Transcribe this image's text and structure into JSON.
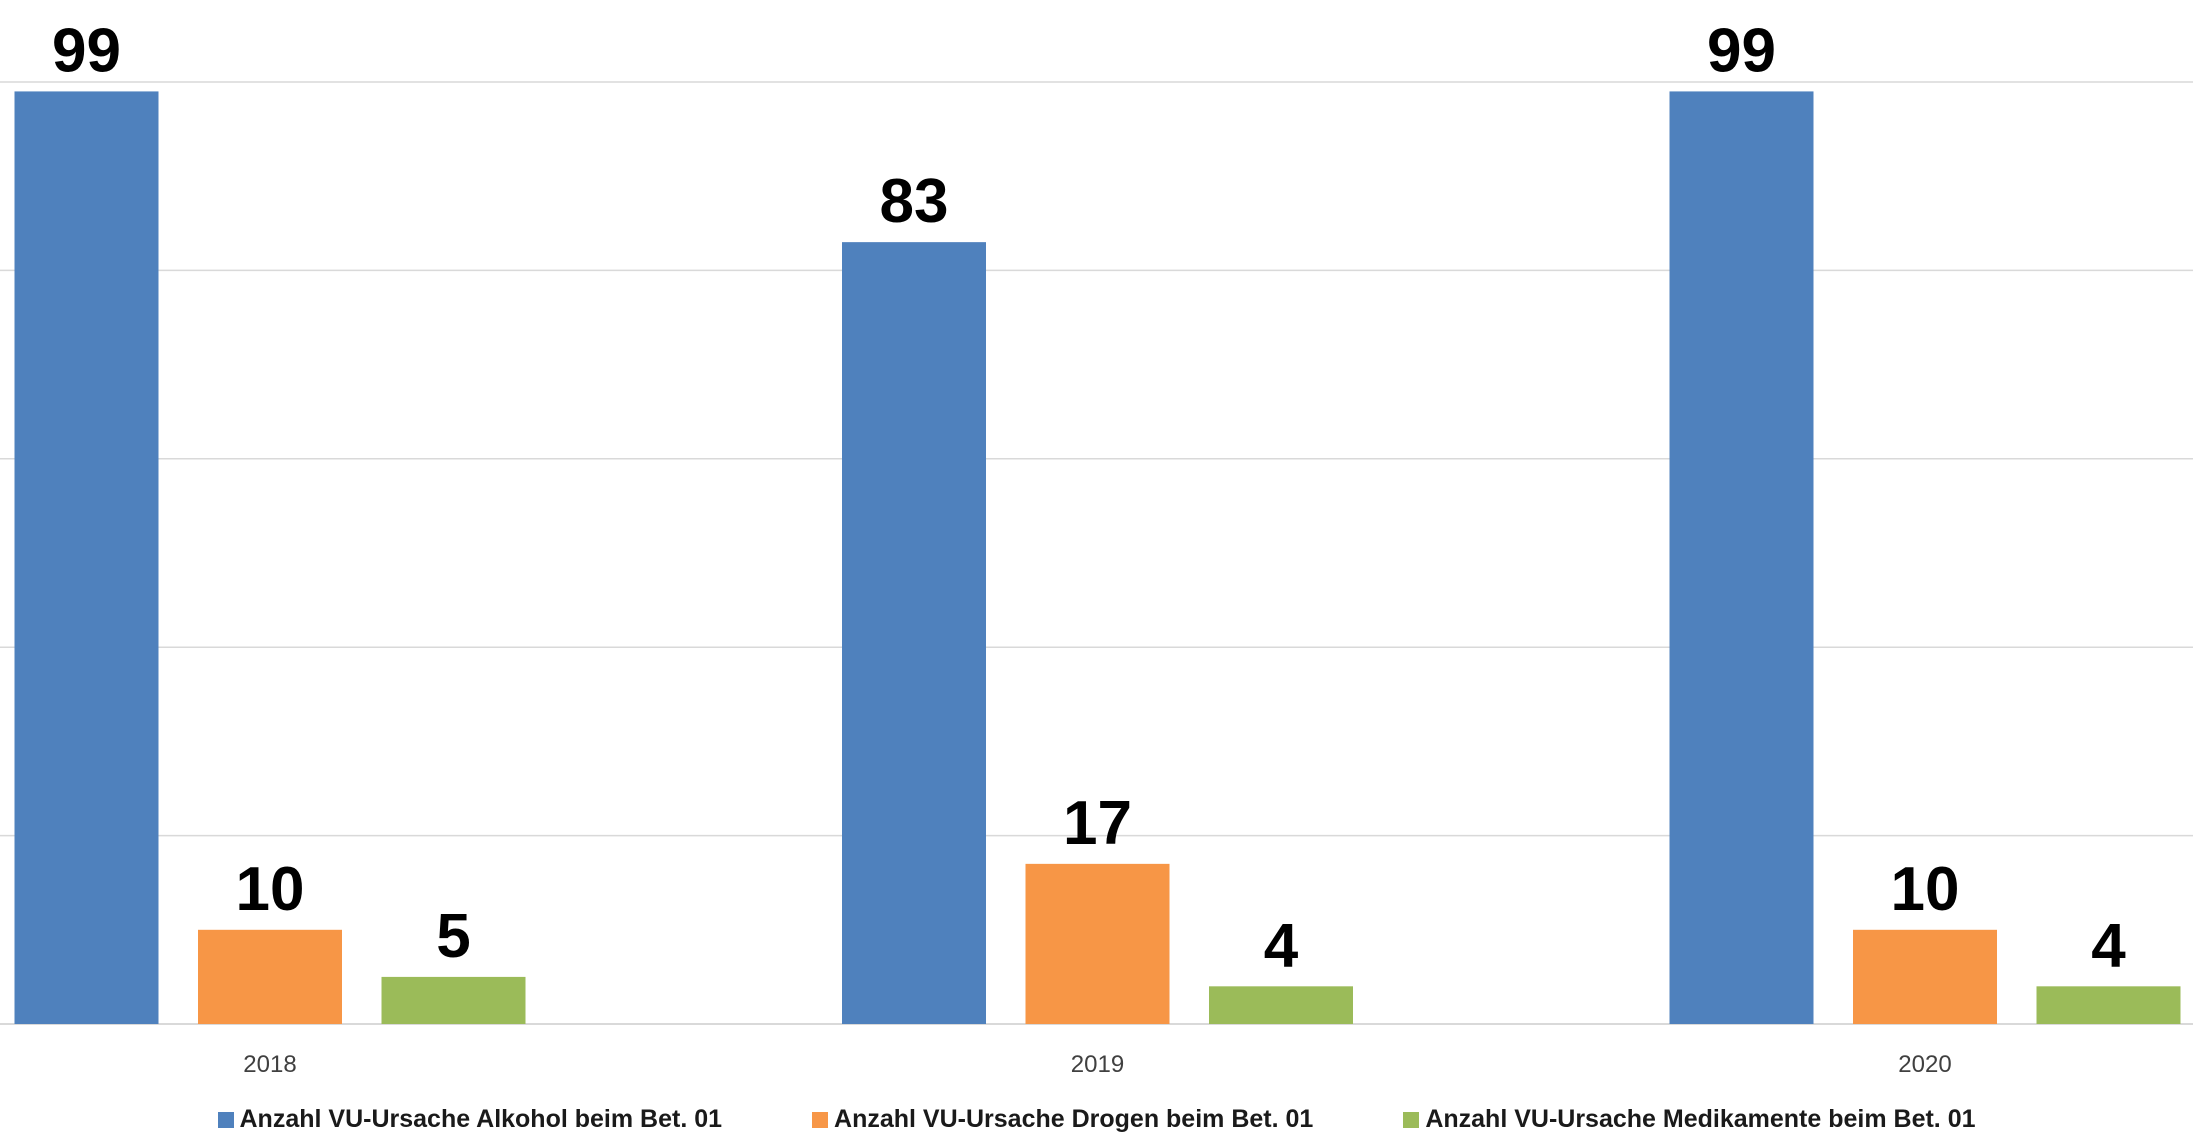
{
  "chart_data": {
    "type": "bar",
    "title": "",
    "xlabel": "",
    "ylabel": "",
    "categories": [
      "2018",
      "2019",
      "2020"
    ],
    "ylim": [
      0,
      100
    ],
    "grid": true,
    "legend_position": "bottom",
    "series": [
      {
        "name": "Anzahl VU-Ursache Alkohol beim Bet. 01",
        "color": "#4F81BD",
        "values": [
          99,
          83,
          99
        ]
      },
      {
        "name": "Anzahl VU-Ursache Drogen beim Bet. 01",
        "color": "#F79646",
        "values": [
          10,
          17,
          10
        ]
      },
      {
        "name": "Anzahl VU-Ursache Medikamente beim Bet. 01",
        "color": "#9BBB59",
        "values": [
          5,
          4,
          4
        ]
      }
    ]
  }
}
